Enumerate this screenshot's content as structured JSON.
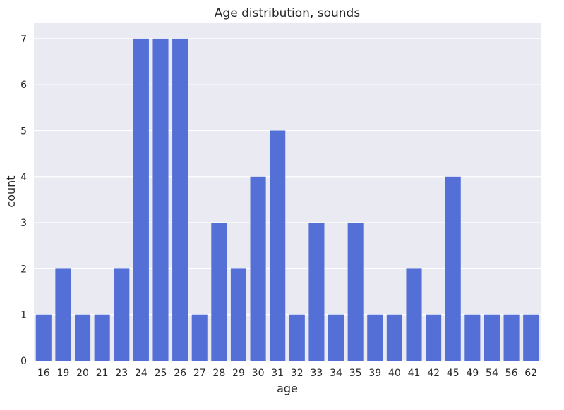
{
  "chart_data": {
    "type": "bar",
    "title": "Age distribution, sounds",
    "xlabel": "age",
    "ylabel": "count",
    "categories": [
      "16",
      "19",
      "20",
      "21",
      "23",
      "24",
      "25",
      "26",
      "27",
      "28",
      "29",
      "30",
      "31",
      "32",
      "33",
      "34",
      "35",
      "39",
      "40",
      "41",
      "42",
      "45",
      "49",
      "54",
      "56",
      "62"
    ],
    "values": [
      1,
      2,
      1,
      1,
      2,
      7,
      7,
      7,
      1,
      3,
      2,
      4,
      5,
      1,
      3,
      1,
      3,
      1,
      1,
      2,
      1,
      4,
      1,
      1,
      1,
      1
    ],
    "ylim": [
      0,
      7.35
    ],
    "yticks": [
      0,
      1,
      2,
      3,
      4,
      5,
      6,
      7
    ],
    "grid": true,
    "bar_color": "#5470d6",
    "background_color": "#eaeaf2"
  }
}
